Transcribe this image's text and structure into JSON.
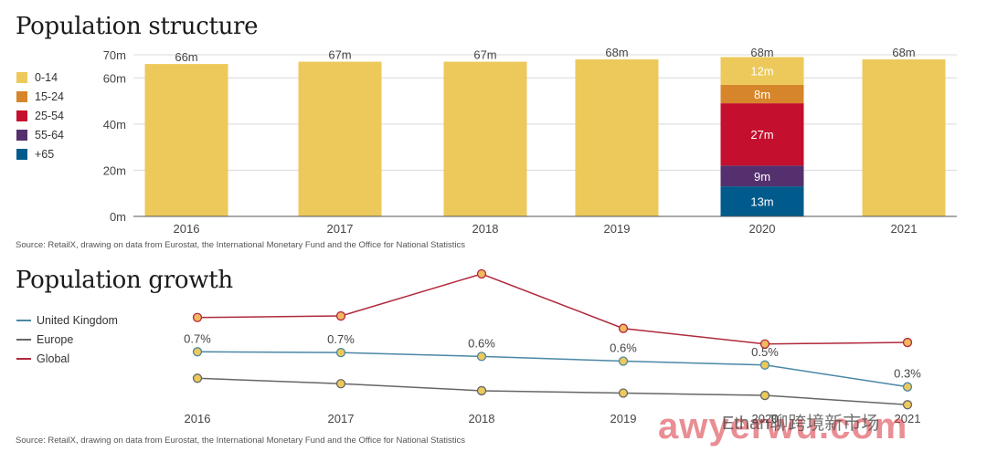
{
  "chart_data": [
    {
      "type": "bar",
      "title": "Population structure",
      "source": "Source: RetailX, drawing on data from Eurostat, the International Monetary Fund and the Office for National Statistics",
      "categories": [
        "2016",
        "2017",
        "2018",
        "2019",
        "2020",
        "2021"
      ],
      "totals": [
        66,
        67,
        67,
        68,
        68,
        68
      ],
      "total_labels": [
        "66m",
        "67m",
        "67m",
        "68m",
        "68m",
        "68m"
      ],
      "y_ticks": [
        0,
        20,
        40,
        60,
        70
      ],
      "y_tick_labels": [
        "0m",
        "20m",
        "40m",
        "60m",
        "70m"
      ],
      "ylim": [
        0,
        70
      ],
      "legend": [
        "0-14",
        "15-24",
        "25-54",
        "55-64",
        "+65"
      ],
      "colors": [
        "#ecc95a",
        "#d6852b",
        "#c4102e",
        "#54306e",
        "#005b8c"
      ],
      "breakdown": {
        "category": "2020",
        "segments": [
          {
            "name": "+65",
            "value": 13,
            "label": "13m"
          },
          {
            "name": "55-64",
            "value": 9,
            "label": "9m"
          },
          {
            "name": "25-54",
            "value": 27,
            "label": "27m"
          },
          {
            "name": "15-24",
            "value": 8,
            "label": "8m"
          },
          {
            "name": "0-14",
            "value": 12,
            "label": "12m"
          }
        ]
      }
    },
    {
      "type": "line",
      "title": "Population growth",
      "source": "Source: RetailX, drawing on data from Eurostat, the International Monetary Fund and the Office for National Statistics",
      "x": [
        "2016",
        "2017",
        "2018",
        "2019",
        "2020",
        "2021"
      ],
      "series": [
        {
          "name": "United Kingdom",
          "color": "#4a87a6",
          "values": [
            0.7,
            0.69,
            0.64,
            0.58,
            0.53,
            0.25
          ],
          "labels": [
            "0.7%",
            "0.7%",
            "0.6%",
            "0.6%",
            "0.5%",
            "0.3%"
          ]
        },
        {
          "name": "Europe",
          "color": "#666666",
          "values": [
            0.36,
            0.29,
            0.2,
            0.17,
            0.14,
            0.02
          ]
        },
        {
          "name": "Global",
          "color": "#b0293c",
          "values": [
            1.14,
            1.16,
            1.7,
            1.0,
            0.8,
            0.82
          ]
        }
      ]
    }
  ],
  "watermark": {
    "brand": "awyerwu.com",
    "caption": "Ethan聊跨境新市场"
  }
}
